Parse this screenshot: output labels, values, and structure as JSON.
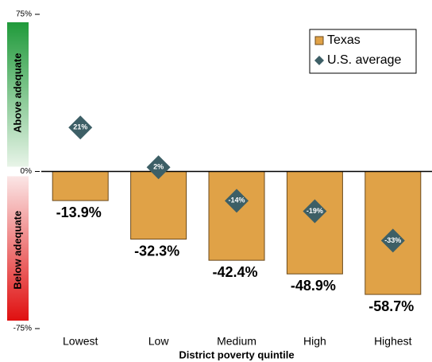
{
  "chart_data": {
    "type": "bar",
    "x_label": "District poverty quintile",
    "panel_labels": [
      "Above adequate",
      "Below adequate"
    ],
    "categories": [
      "Lowest",
      "Low",
      "Medium",
      "High",
      "Highest"
    ],
    "series": [
      {
        "name": "Texas",
        "type": "bar",
        "color": "#e0a247",
        "values": [
          -13.9,
          -32.3,
          -42.4,
          -48.9,
          -58.7
        ],
        "value_labels": [
          "-13.9%",
          "-32.3%",
          "-42.4%",
          "-48.9%",
          "-58.7%"
        ]
      },
      {
        "name": "U.S. average",
        "type": "scatter",
        "marker": "diamond",
        "color": "#3d5f66",
        "values": [
          21,
          2,
          -14,
          -19,
          -33
        ],
        "value_labels": [
          "21%",
          "2%",
          "-14%",
          "-19%",
          "-33%"
        ]
      }
    ],
    "ylim": [
      -75,
      75
    ],
    "yticks": [
      {
        "value": 75,
        "label": "75%"
      },
      {
        "value": 0,
        "label": "0%"
      },
      {
        "value": -75,
        "label": "-75%"
      }
    ],
    "legend": "upper right"
  }
}
